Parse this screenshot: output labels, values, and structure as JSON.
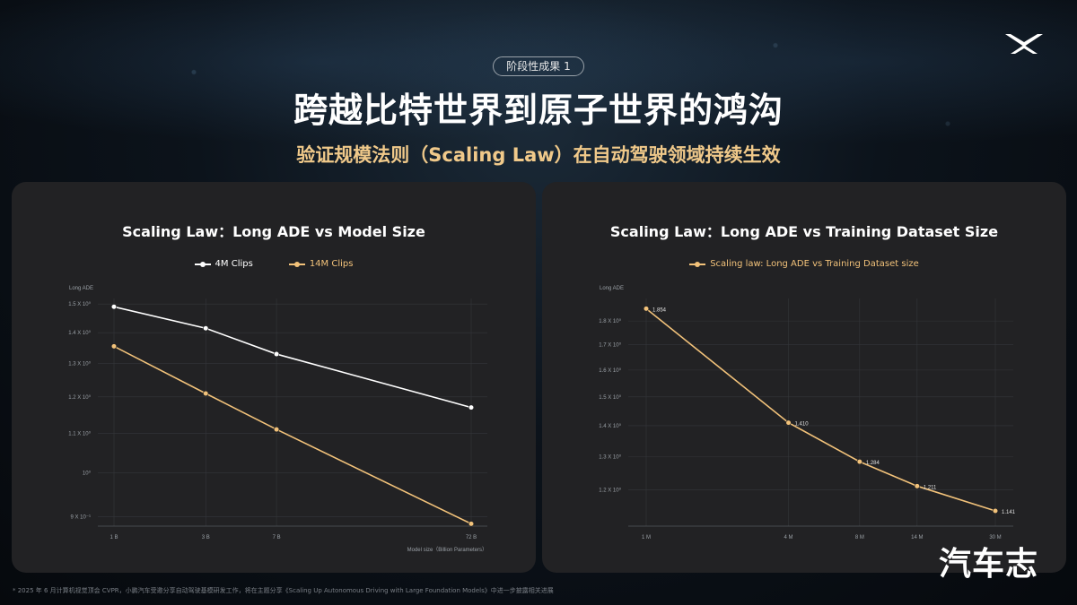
{
  "header": {
    "stage_badge": "阶段性成果 1",
    "title": "跨越比特世界到原子世界的鸿沟",
    "subtitle": "验证规模法则（Scaling Law）在自动驾驶领域持续生效"
  },
  "footnote": "* 2025 年 6 月计算机视觉顶会 CVPR，小鹏汽车受邀分享自动驾驶基模研发工作，将在主题分享《Scaling Up Autonomous Driving with Large Foundation Models》中进一步披露相关进展",
  "watermark": "汽车志",
  "colors": {
    "white_series": "#ffffff",
    "gold_series": "#f2c27a",
    "panel": "#222224",
    "subtitle": "#f0c98a"
  },
  "chart_data": [
    {
      "type": "line",
      "title": "Scaling Law：Long ADE vs Model Size",
      "xlabel": "Model size（Billion Parameters）",
      "ylabel": "Long ADE",
      "yscale": "log",
      "categories": [
        "1 B",
        "3 B",
        "7 B",
        "72 B"
      ],
      "x": [
        1,
        3,
        7,
        72
      ],
      "ylim": [
        0.88,
        1.52
      ],
      "yticks": [
        {
          "value": 1.5,
          "label": "1.5 X 10⁰"
        },
        {
          "value": 1.4,
          "label": "1.4 X 10⁰"
        },
        {
          "value": 1.3,
          "label": "1.3 X 10⁰"
        },
        {
          "value": 1.2,
          "label": "1.2 X 10⁰"
        },
        {
          "value": 1.1,
          "label": "1.1 X 10⁰"
        },
        {
          "value": 1.0,
          "label": "10⁰"
        },
        {
          "value": 0.9,
          "label": "9 X 10⁻¹"
        }
      ],
      "series": [
        {
          "name": "4M Clips",
          "color": "#ffffff",
          "values": [
            1.49,
            1.415,
            1.33,
            1.17
          ]
        },
        {
          "name": "14M Clips",
          "color": "#f2c27a",
          "values": [
            1.355,
            1.21,
            1.11,
            0.885
          ]
        }
      ],
      "grid": true,
      "legend": "top-center"
    },
    {
      "type": "line",
      "title": "Scaling Law：Long ADE vs Training Dataset Size",
      "xlabel": "",
      "ylabel": "Long ADE",
      "yscale": "log",
      "categories": [
        "1 M",
        "4 M",
        "8 M",
        "14 M",
        "30 M"
      ],
      "x": [
        1,
        4,
        8,
        14,
        30
      ],
      "ylim": [
        1.1,
        1.9
      ],
      "yticks": [
        {
          "value": 1.8,
          "label": "1.8 X 10⁰"
        },
        {
          "value": 1.7,
          "label": "1.7 X 10⁰"
        },
        {
          "value": 1.6,
          "label": "1.6 X 10⁰"
        },
        {
          "value": 1.5,
          "label": "1.5 X 10⁰"
        },
        {
          "value": 1.4,
          "label": "1.4 X 10⁰"
        },
        {
          "value": 1.3,
          "label": "1.3 X 10⁰"
        },
        {
          "value": 1.2,
          "label": "1.2 X 10⁰"
        }
      ],
      "series": [
        {
          "name": "Scaling law: Long ADE vs Training Dataset size",
          "color": "#f2c27a",
          "values": [
            1.854,
            1.41,
            1.284,
            1.211,
            1.141
          ],
          "labels": [
            "1.854",
            "1.410",
            "1.284",
            "1.211",
            "1.141"
          ]
        }
      ],
      "grid": true,
      "legend": "top-center"
    }
  ]
}
